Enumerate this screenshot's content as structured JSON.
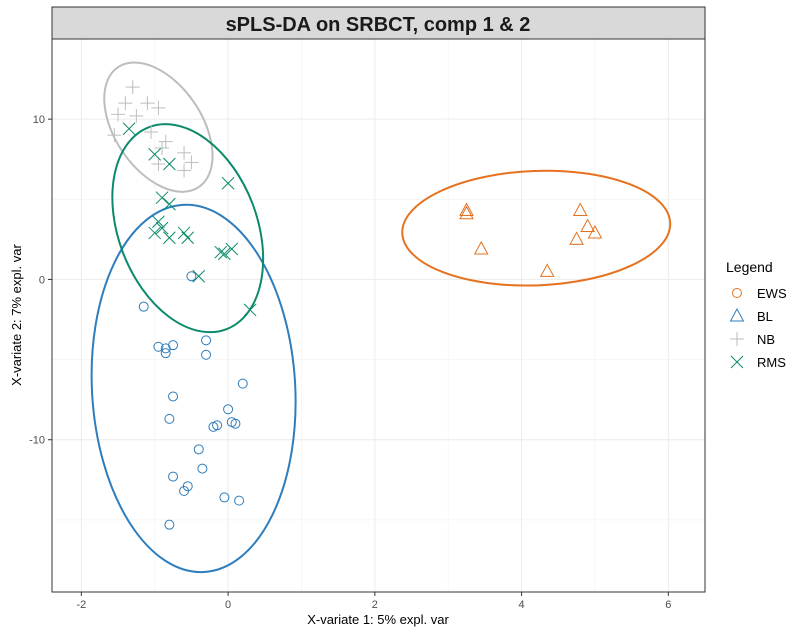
{
  "chart_data": {
    "type": "scatter",
    "title": "sPLS-DA on SRBCT, comp 1 & 2",
    "xlabel": "X-variate 1: 5% expl. var",
    "ylabel": "X-variate 2: 7% expl. var",
    "xlim": [
      -2.4,
      6.5
    ],
    "ylim": [
      -19.5,
      15
    ],
    "x_ticks": [
      -2,
      0,
      2,
      4,
      6
    ],
    "y_ticks": [
      -10,
      0,
      10
    ],
    "x_tick_labels": [
      "-2",
      "0",
      "2",
      "4",
      "6"
    ],
    "y_tick_labels": [
      "-10",
      "0",
      "10"
    ],
    "grid": true,
    "legend": {
      "title": "Legend",
      "position": "right"
    },
    "series": [
      {
        "name": "EWS",
        "marker": "circle",
        "color": "#2e7dbd",
        "legend_color": "#e6711e",
        "ellipse_color": "#2e7dbd",
        "points": [
          [
            -1.15,
            -1.7
          ],
          [
            -0.95,
            -4.2
          ],
          [
            -0.85,
            -4.6
          ],
          [
            -0.75,
            -4.1
          ],
          [
            -0.85,
            -4.3
          ],
          [
            -0.3,
            -3.8
          ],
          [
            -0.3,
            -4.7
          ],
          [
            -0.75,
            -7.3
          ],
          [
            -0.8,
            -8.7
          ],
          [
            0.2,
            -6.5
          ],
          [
            0.0,
            -8.1
          ],
          [
            -0.15,
            -9.1
          ],
          [
            -0.2,
            -9.2
          ],
          [
            0.05,
            -8.9
          ],
          [
            0.1,
            -9.0
          ],
          [
            -0.4,
            -10.6
          ],
          [
            -0.35,
            -11.8
          ],
          [
            -0.75,
            -12.3
          ],
          [
            -0.55,
            -12.9
          ],
          [
            -0.6,
            -13.2
          ],
          [
            -0.05,
            -13.6
          ],
          [
            0.15,
            -13.8
          ],
          [
            -0.8,
            -15.3
          ],
          [
            -0.5,
            0.2
          ]
        ],
        "ellipse": {
          "cx": -0.47,
          "cy": -6.8,
          "rx": 1.385,
          "ry": 11.47,
          "angle": -3.3
        }
      },
      {
        "name": "BL",
        "marker": "triangle",
        "color": "#e6711e",
        "legend_color": "#2e7dbd",
        "ellipse_color": "#e6711e",
        "points": [
          [
            3.25,
            4.3
          ],
          [
            3.25,
            4.1
          ],
          [
            3.45,
            1.9
          ],
          [
            4.8,
            4.3
          ],
          [
            4.9,
            3.3
          ],
          [
            5.0,
            2.9
          ],
          [
            4.75,
            2.5
          ],
          [
            4.35,
            0.5
          ]
        ],
        "ellipse": {
          "cx": 4.2,
          "cy": 3.2,
          "rx": 1.827,
          "ry": 3.57,
          "angle": -2.2
        }
      },
      {
        "name": "NB",
        "marker": "plus",
        "color": "#bdbdbd",
        "legend_color": "#bdbdbd",
        "ellipse_color": "#bdbdbd",
        "points": [
          [
            -1.3,
            12.0
          ],
          [
            -1.4,
            11.0
          ],
          [
            -1.1,
            11.0
          ],
          [
            -0.95,
            10.7
          ],
          [
            -1.25,
            10.2
          ],
          [
            -1.5,
            10.3
          ],
          [
            -1.55,
            9.0
          ],
          [
            -1.05,
            9.2
          ],
          [
            -0.9,
            8.2
          ],
          [
            -0.85,
            8.6
          ],
          [
            -0.6,
            7.9
          ],
          [
            -0.5,
            7.3
          ],
          [
            -0.95,
            7.2
          ],
          [
            -0.6,
            6.8
          ]
        ],
        "ellipse": {
          "cx": -0.95,
          "cy": 9.5,
          "rx": 0.592,
          "ry": 4.51,
          "angle": -34.0
        }
      },
      {
        "name": "RMS",
        "marker": "x",
        "color": "#0b8a6b",
        "legend_color": "#0b8a6b",
        "ellipse_color": "#0b8a6b",
        "points": [
          [
            -1.35,
            9.4
          ],
          [
            -1.0,
            7.8
          ],
          [
            -0.8,
            7.2
          ],
          [
            -0.9,
            5.1
          ],
          [
            -0.8,
            4.7
          ],
          [
            -0.95,
            3.6
          ],
          [
            -0.9,
            3.2
          ],
          [
            -1.0,
            2.9
          ],
          [
            -0.8,
            2.6
          ],
          [
            -0.6,
            2.9
          ],
          [
            -0.55,
            2.6
          ],
          [
            0.0,
            6.0
          ],
          [
            -0.1,
            1.7
          ],
          [
            -0.05,
            1.6
          ],
          [
            0.05,
            1.9
          ],
          [
            -0.4,
            0.2
          ],
          [
            0.3,
            -1.9
          ]
        ],
        "ellipse": {
          "cx": -0.55,
          "cy": 3.2,
          "rx": 0.944,
          "ry": 6.75,
          "angle": -21.0
        }
      }
    ]
  }
}
